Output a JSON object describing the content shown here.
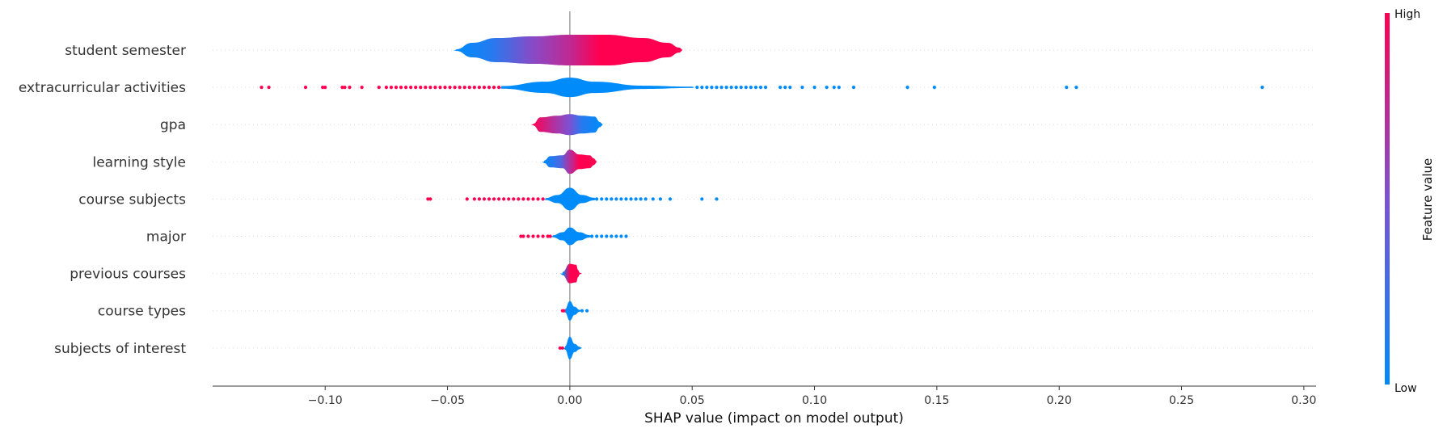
{
  "chart_data": {
    "type": "scatter",
    "subtype": "shap-violin-summary",
    "title": "",
    "xlabel": "SHAP value (impact on model output)",
    "ylabel": "",
    "xlim": [
      -0.146,
      0.305
    ],
    "xticks": [
      -0.1,
      -0.05,
      0.0,
      0.05,
      0.1,
      0.15,
      0.2,
      0.25,
      0.3
    ],
    "xtick_labels": [
      "−0.10",
      "−0.05",
      "0.00",
      "0.05",
      "0.10",
      "0.15",
      "0.20",
      "0.25",
      "0.30"
    ],
    "grid": false,
    "colorbar": {
      "title": "Feature value",
      "high_label": "High",
      "low_label": "Low",
      "low_color": "#008bfb",
      "mid_color": "#7c52d3",
      "high_color": "#ff0051"
    },
    "colors": {
      "low": "#008bfb",
      "high": "#ff0051",
      "zero_line": "#999999",
      "axis": "#333333",
      "row_guide": "#dddddd"
    },
    "features": [
      {
        "name": "student semester",
        "violin": [
          [
            -0.0465,
            0.05
          ],
          [
            -0.04,
            0.45
          ],
          [
            -0.03,
            0.75
          ],
          [
            -0.015,
            0.85
          ],
          [
            0.0,
            0.95
          ],
          [
            0.015,
            0.95
          ],
          [
            0.03,
            0.75
          ],
          [
            0.04,
            0.45
          ],
          [
            0.045,
            0.15
          ]
        ],
        "color_stops": [
          [
            -0.046,
            0.0
          ],
          [
            -0.032,
            0.15
          ],
          [
            -0.015,
            0.55
          ],
          [
            0.0,
            0.75
          ],
          [
            0.012,
            1.0
          ],
          [
            0.045,
            1.0
          ]
        ],
        "points": []
      },
      {
        "name": "extracurricular activities",
        "violin": [
          [
            -0.028,
            0.08
          ],
          [
            -0.01,
            0.35
          ],
          [
            0.0,
            0.6
          ],
          [
            0.01,
            0.35
          ],
          [
            0.03,
            0.1
          ],
          [
            0.05,
            0.04
          ]
        ],
        "color_stops": [
          [
            -0.028,
            0.0
          ],
          [
            0.05,
            0.0
          ]
        ],
        "points": [
          {
            "x": -0.126,
            "v": 1
          },
          {
            "x": -0.123,
            "v": 1
          },
          {
            "x": -0.108,
            "v": 1
          },
          {
            "x": -0.101,
            "v": 1
          },
          {
            "x": -0.1,
            "v": 1
          },
          {
            "x": -0.093,
            "v": 1
          },
          {
            "x": -0.092,
            "v": 1
          },
          {
            "x": -0.09,
            "v": 1
          },
          {
            "x": -0.085,
            "v": 1
          },
          {
            "x": -0.078,
            "v": 1
          },
          {
            "x": -0.075,
            "v": 1
          },
          {
            "x": -0.073,
            "v": 1
          },
          {
            "x": -0.071,
            "v": 1
          },
          {
            "x": -0.069,
            "v": 1
          },
          {
            "x": -0.067,
            "v": 1
          },
          {
            "x": -0.065,
            "v": 1
          },
          {
            "x": -0.063,
            "v": 1
          },
          {
            "x": -0.061,
            "v": 1
          },
          {
            "x": -0.059,
            "v": 1
          },
          {
            "x": -0.057,
            "v": 1
          },
          {
            "x": -0.055,
            "v": 1
          },
          {
            "x": -0.053,
            "v": 1
          },
          {
            "x": -0.051,
            "v": 1
          },
          {
            "x": -0.049,
            "v": 1
          },
          {
            "x": -0.047,
            "v": 1
          },
          {
            "x": -0.045,
            "v": 1
          },
          {
            "x": -0.043,
            "v": 1
          },
          {
            "x": -0.041,
            "v": 1
          },
          {
            "x": -0.039,
            "v": 1
          },
          {
            "x": -0.037,
            "v": 1
          },
          {
            "x": -0.035,
            "v": 1
          },
          {
            "x": -0.033,
            "v": 1
          },
          {
            "x": -0.031,
            "v": 1
          },
          {
            "x": -0.029,
            "v": 1
          },
          {
            "x": 0.052,
            "v": 0
          },
          {
            "x": 0.054,
            "v": 0
          },
          {
            "x": 0.056,
            "v": 0
          },
          {
            "x": 0.058,
            "v": 0
          },
          {
            "x": 0.06,
            "v": 0
          },
          {
            "x": 0.062,
            "v": 0
          },
          {
            "x": 0.064,
            "v": 0
          },
          {
            "x": 0.066,
            "v": 0
          },
          {
            "x": 0.068,
            "v": 0
          },
          {
            "x": 0.07,
            "v": 0
          },
          {
            "x": 0.072,
            "v": 0
          },
          {
            "x": 0.074,
            "v": 0
          },
          {
            "x": 0.076,
            "v": 0
          },
          {
            "x": 0.078,
            "v": 0
          },
          {
            "x": 0.08,
            "v": 0
          },
          {
            "x": 0.086,
            "v": 0
          },
          {
            "x": 0.088,
            "v": 0
          },
          {
            "x": 0.09,
            "v": 0
          },
          {
            "x": 0.095,
            "v": 0
          },
          {
            "x": 0.1,
            "v": 0
          },
          {
            "x": 0.105,
            "v": 0
          },
          {
            "x": 0.108,
            "v": 0
          },
          {
            "x": 0.11,
            "v": 0
          },
          {
            "x": 0.116,
            "v": 0
          },
          {
            "x": 0.138,
            "v": 0
          },
          {
            "x": 0.149,
            "v": 0
          },
          {
            "x": 0.203,
            "v": 0
          },
          {
            "x": 0.207,
            "v": 0
          },
          {
            "x": 0.283,
            "v": 0
          }
        ]
      },
      {
        "name": "gpa",
        "violin": [
          [
            -0.015,
            0.05
          ],
          [
            -0.012,
            0.45
          ],
          [
            -0.005,
            0.55
          ],
          [
            0.0,
            0.65
          ],
          [
            0.005,
            0.55
          ],
          [
            0.01,
            0.5
          ],
          [
            0.0125,
            0.15
          ]
        ],
        "color_stops": [
          [
            -0.015,
            1.0
          ],
          [
            -0.008,
            0.75
          ],
          [
            0.0,
            0.5
          ],
          [
            0.005,
            0.15
          ],
          [
            0.0125,
            0.0
          ]
        ],
        "points": []
      },
      {
        "name": "learning style",
        "violin": [
          [
            -0.0105,
            0.08
          ],
          [
            -0.008,
            0.35
          ],
          [
            -0.003,
            0.4
          ],
          [
            0.0,
            0.75
          ],
          [
            0.004,
            0.45
          ],
          [
            0.008,
            0.4
          ],
          [
            0.01,
            0.2
          ]
        ],
        "color_stops": [
          [
            -0.0105,
            0.0
          ],
          [
            -0.004,
            0.3
          ],
          [
            0.0,
            0.7
          ],
          [
            0.004,
            1.0
          ],
          [
            0.01,
            1.0
          ]
        ],
        "points": []
      },
      {
        "name": "course subjects",
        "violin": [
          [
            -0.01,
            0.06
          ],
          [
            -0.005,
            0.25
          ],
          [
            0.0,
            0.7
          ],
          [
            0.005,
            0.25
          ],
          [
            0.01,
            0.08
          ]
        ],
        "color_stops": [
          [
            -0.01,
            0.0
          ],
          [
            0.01,
            0.0
          ]
        ],
        "points": [
          {
            "x": -0.058,
            "v": 1
          },
          {
            "x": -0.057,
            "v": 1
          },
          {
            "x": -0.042,
            "v": 1
          },
          {
            "x": -0.039,
            "v": 1
          },
          {
            "x": -0.037,
            "v": 1
          },
          {
            "x": -0.035,
            "v": 1
          },
          {
            "x": -0.033,
            "v": 1
          },
          {
            "x": -0.031,
            "v": 1
          },
          {
            "x": -0.029,
            "v": 1
          },
          {
            "x": -0.027,
            "v": 1
          },
          {
            "x": -0.025,
            "v": 1
          },
          {
            "x": -0.023,
            "v": 1
          },
          {
            "x": -0.021,
            "v": 1
          },
          {
            "x": -0.019,
            "v": 1
          },
          {
            "x": -0.017,
            "v": 1
          },
          {
            "x": -0.015,
            "v": 1
          },
          {
            "x": -0.013,
            "v": 1
          },
          {
            "x": -0.011,
            "v": 1
          },
          {
            "x": 0.011,
            "v": 0
          },
          {
            "x": 0.013,
            "v": 0
          },
          {
            "x": 0.015,
            "v": 0
          },
          {
            "x": 0.017,
            "v": 0
          },
          {
            "x": 0.019,
            "v": 0
          },
          {
            "x": 0.021,
            "v": 0
          },
          {
            "x": 0.023,
            "v": 0
          },
          {
            "x": 0.025,
            "v": 0
          },
          {
            "x": 0.027,
            "v": 0
          },
          {
            "x": 0.029,
            "v": 0
          },
          {
            "x": 0.031,
            "v": 0
          },
          {
            "x": 0.034,
            "v": 0
          },
          {
            "x": 0.037,
            "v": 0
          },
          {
            "x": 0.041,
            "v": 0
          },
          {
            "x": 0.054,
            "v": 0
          },
          {
            "x": 0.06,
            "v": 0
          }
        ]
      },
      {
        "name": "major",
        "violin": [
          [
            -0.007,
            0.06
          ],
          [
            -0.003,
            0.25
          ],
          [
            0.0,
            0.55
          ],
          [
            0.004,
            0.25
          ],
          [
            0.008,
            0.08
          ]
        ],
        "color_stops": [
          [
            -0.007,
            0.0
          ],
          [
            0.008,
            0.0
          ]
        ],
        "points": [
          {
            "x": -0.02,
            "v": 1
          },
          {
            "x": -0.019,
            "v": 1
          },
          {
            "x": -0.017,
            "v": 1
          },
          {
            "x": -0.015,
            "v": 1
          },
          {
            "x": -0.013,
            "v": 1
          },
          {
            "x": -0.011,
            "v": 1
          },
          {
            "x": -0.009,
            "v": 1
          },
          {
            "x": -0.008,
            "v": 1
          },
          {
            "x": 0.009,
            "v": 0
          },
          {
            "x": 0.011,
            "v": 0
          },
          {
            "x": 0.013,
            "v": 0
          },
          {
            "x": 0.015,
            "v": 0
          },
          {
            "x": 0.017,
            "v": 0
          },
          {
            "x": 0.019,
            "v": 0
          },
          {
            "x": 0.021,
            "v": 0
          },
          {
            "x": 0.023,
            "v": 0
          }
        ]
      },
      {
        "name": "previous courses",
        "violin": [
          [
            -0.003,
            0.1
          ],
          [
            0.0,
            0.6
          ],
          [
            0.0025,
            0.55
          ],
          [
            0.0035,
            0.2
          ],
          [
            0.004,
            0.05
          ]
        ],
        "color_stops": [
          [
            -0.003,
            0.0
          ],
          [
            0.0,
            1.0
          ],
          [
            0.004,
            1.0
          ]
        ],
        "points": []
      },
      {
        "name": "course types",
        "violin": [
          [
            -0.002,
            0.1
          ],
          [
            0.0,
            0.6
          ],
          [
            0.002,
            0.25
          ],
          [
            0.004,
            0.06
          ]
        ],
        "color_stops": [
          [
            -0.002,
            0.0
          ],
          [
            0.004,
            0.0
          ]
        ],
        "points": [
          {
            "x": -0.003,
            "v": 1
          },
          {
            "x": -0.0025,
            "v": 1
          },
          {
            "x": 0.005,
            "v": 0
          },
          {
            "x": 0.007,
            "v": 0
          }
        ]
      },
      {
        "name": "subjects of interest",
        "violin": [
          [
            -0.002,
            0.1
          ],
          [
            0.0,
            0.7
          ],
          [
            0.002,
            0.25
          ],
          [
            0.004,
            0.08
          ]
        ],
        "color_stops": [
          [
            -0.002,
            0.0
          ],
          [
            0.004,
            0.0
          ]
        ],
        "points": [
          {
            "x": -0.004,
            "v": 1
          },
          {
            "x": -0.003,
            "v": 1
          }
        ]
      }
    ]
  }
}
